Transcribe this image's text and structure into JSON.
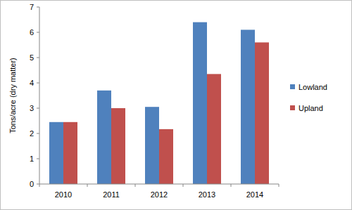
{
  "chart_data": {
    "type": "bar",
    "y_label": "Tons/acre (dry matter)",
    "categories": [
      "2010",
      "2011",
      "2012",
      "2013",
      "2014"
    ],
    "series": [
      {
        "name": "Lowland",
        "color": "#4f81bd",
        "values": [
          2.45,
          3.7,
          3.05,
          6.4,
          6.1
        ]
      },
      {
        "name": "Upland",
        "color": "#c0504d",
        "values": [
          2.45,
          3.0,
          2.17,
          4.35,
          5.6
        ]
      }
    ],
    "ylim": [
      0,
      7
    ],
    "yticks": [
      0,
      1,
      2,
      3,
      4,
      5,
      6,
      7
    ],
    "grid": false,
    "legend": "right"
  }
}
